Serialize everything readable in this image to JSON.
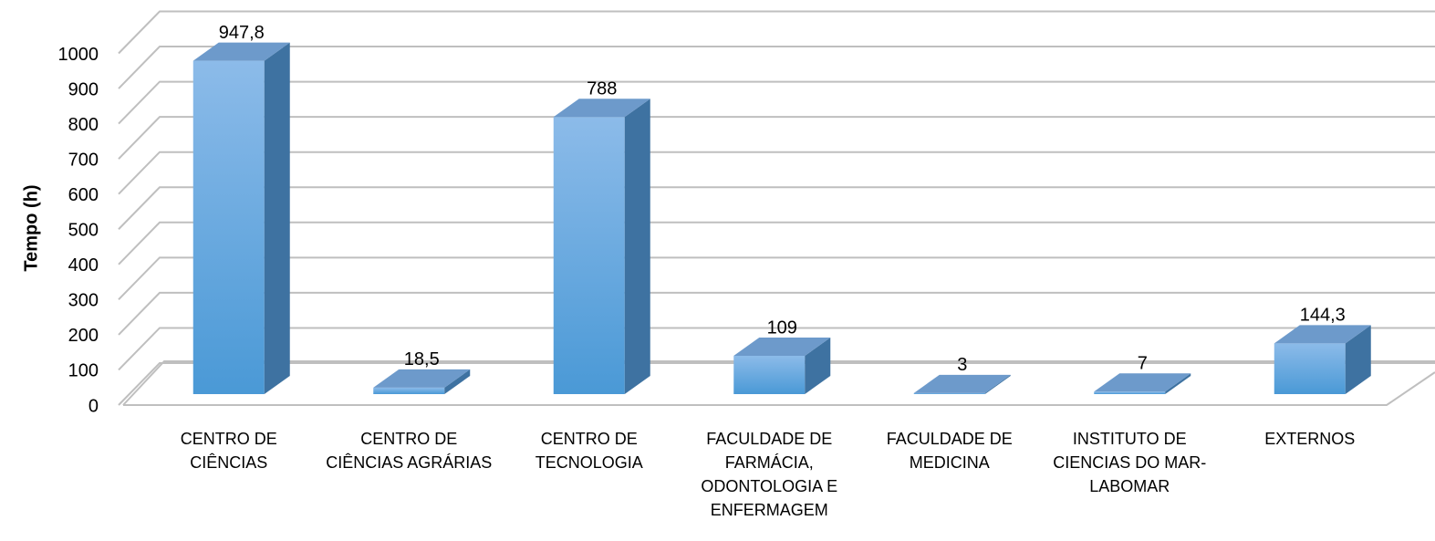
{
  "chart_data": {
    "type": "bar3d",
    "y_label": "Tempo (h)",
    "categories": [
      "CENTRO DE CIÊNCIAS",
      "CENTRO DE CIÊNCIAS AGRÁRIAS",
      "CENTRO DE TECNOLOGIA",
      "FACULDADE DE FARMÁCIA, ODONTOLOGIA E ENFERMAGEM",
      "FACULDADE DE MEDICINA",
      "INSTITUTO DE CIENCIAS DO MAR- LABOMAR",
      "EXTERNOS"
    ],
    "values": [
      947.8,
      18.5,
      788,
      109,
      3,
      7,
      144.3
    ],
    "value_labels": [
      "947,8",
      "18,5",
      "788",
      "109",
      "3",
      "7",
      "144,3"
    ],
    "color": "#5ba3e0",
    "ylim": [
      0,
      1000
    ],
    "yticks": [
      0,
      100,
      200,
      300,
      400,
      500,
      600,
      700,
      800,
      900,
      1000
    ],
    "grid": true
  }
}
